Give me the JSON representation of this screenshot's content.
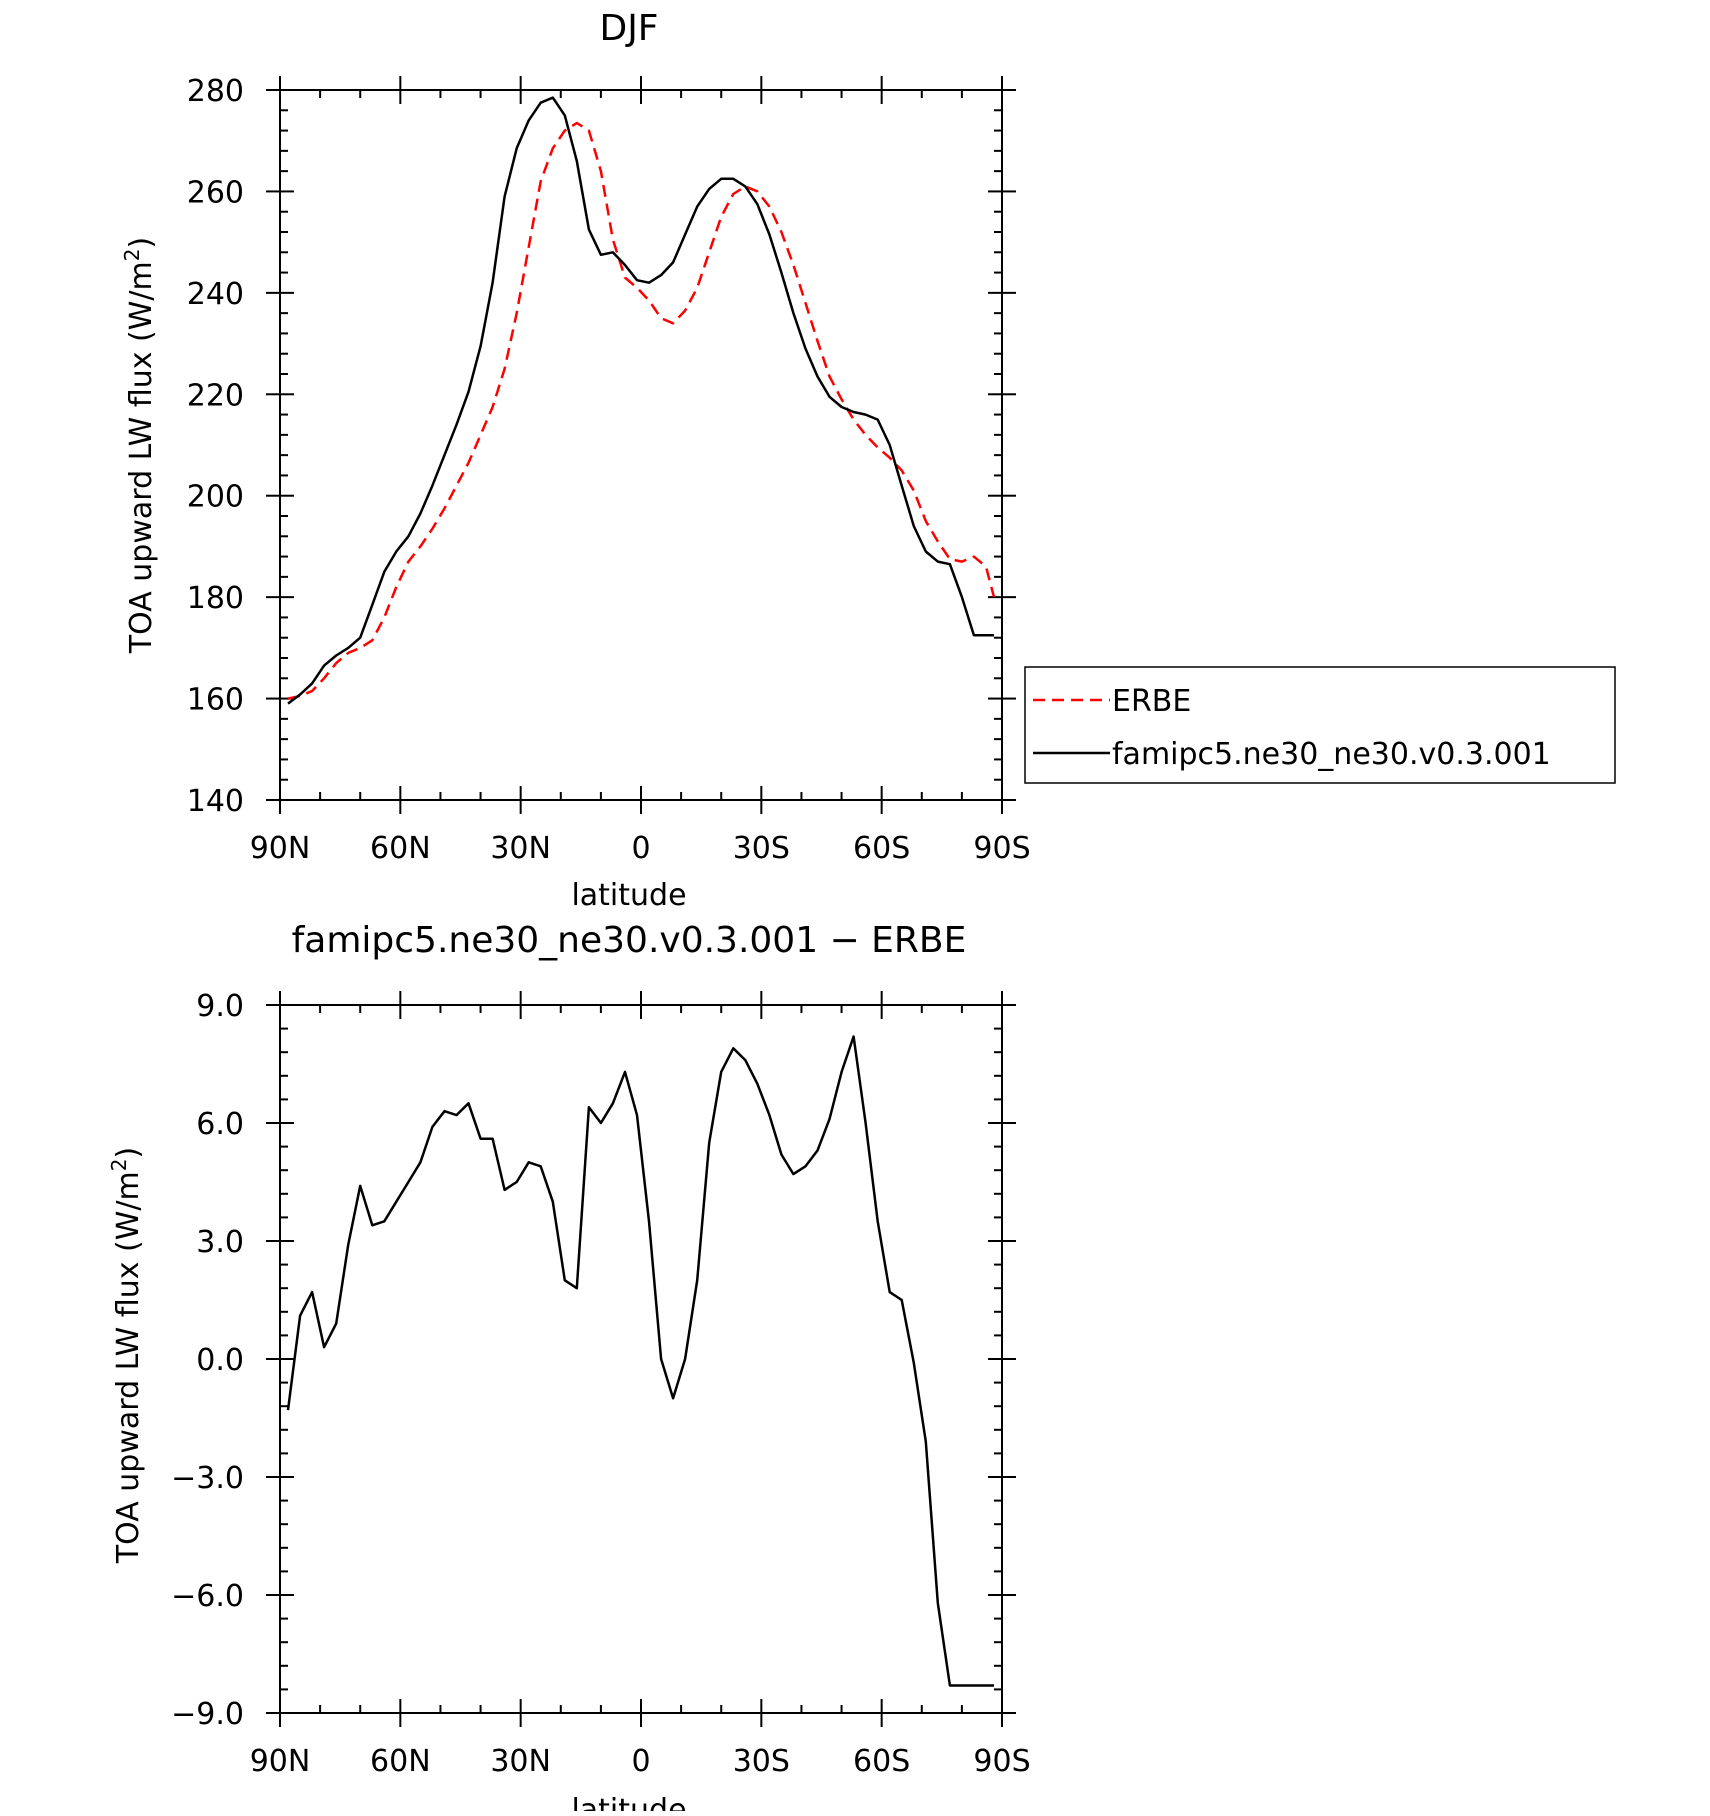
{
  "chart_data": [
    {
      "type": "line",
      "title": "DJF",
      "xlabel": "latitude",
      "ylabel": "TOA upward LW flux (W/m2)",
      "ylabel_main": "TOA upward LW flux (W/m",
      "ylabel_sup": "2",
      "ylabel_close": ")",
      "xlim": [
        90,
        -90
      ],
      "ylim": [
        140,
        280
      ],
      "x_ticks": [
        90,
        60,
        30,
        0,
        -30,
        -60,
        -90
      ],
      "x_tick_labels": [
        "90N",
        "60N",
        "30N",
        "0",
        "30S",
        "60S",
        "90S"
      ],
      "y_ticks": [
        140,
        160,
        180,
        200,
        220,
        240,
        260,
        280
      ],
      "y_tick_labels": [
        "140",
        "160",
        "180",
        "200",
        "220",
        "240",
        "260",
        "280"
      ],
      "legend": {
        "placement": "right",
        "entries": [
          {
            "label": "ERBE",
            "color": "#ff0000",
            "dash": true
          },
          {
            "label": "famipc5.ne30_ne30.v0.3.001",
            "color": "#000000",
            "dash": false
          }
        ]
      },
      "series": [
        {
          "name": "ERBE",
          "color": "#ff0000",
          "dash": true,
          "x": [
            88,
            85,
            82,
            79,
            76,
            73,
            70,
            67,
            64,
            61,
            58,
            55,
            52,
            49,
            46,
            43,
            40,
            37,
            34,
            31,
            28,
            25,
            22,
            19,
            16,
            13,
            10,
            7,
            4,
            1,
            -2,
            -5,
            -8,
            -11,
            -14,
            -17,
            -20,
            -23,
            -26,
            -29,
            -32,
            -35,
            -38,
            -41,
            -44,
            -47,
            -50,
            -53,
            -56,
            -59,
            -62,
            -65,
            -68,
            -71,
            -74,
            -77,
            -80,
            -83,
            -86,
            -88
          ],
          "y": [
            160,
            160.5,
            161.5,
            164,
            167,
            169,
            170,
            171.5,
            176,
            182,
            187,
            190,
            193.5,
            197.5,
            202,
            206.5,
            212,
            217.5,
            225,
            236,
            249,
            262,
            268.5,
            272,
            273.5,
            272,
            264,
            250.5,
            243,
            241,
            238.5,
            235,
            234,
            236.5,
            241,
            248,
            255,
            259.5,
            261,
            260,
            257,
            252,
            245.5,
            238,
            230.5,
            223.5,
            219,
            215,
            212,
            209.5,
            207.5,
            205,
            201,
            195,
            191,
            187.5,
            187,
            188,
            186,
            180
          ]
        },
        {
          "name": "famipc5.ne30_ne30.v0.3.001",
          "color": "#000000",
          "dash": false,
          "x": [
            88,
            85,
            82,
            79,
            76,
            73,
            70,
            67,
            64,
            61,
            58,
            55,
            52,
            49,
            46,
            43,
            40,
            37,
            34,
            31,
            28,
            25,
            22,
            19,
            16,
            13,
            10,
            7,
            4,
            1,
            -2,
            -5,
            -8,
            -11,
            -14,
            -17,
            -20,
            -23,
            -26,
            -29,
            -32,
            -35,
            -38,
            -41,
            -44,
            -47,
            -50,
            -53,
            -56,
            -59,
            -62,
            -65,
            -68,
            -71,
            -74,
            -77,
            -80,
            -83,
            -86,
            -88
          ],
          "y": [
            159,
            160.8,
            163,
            166.5,
            168.5,
            170,
            172,
            178.5,
            185,
            189,
            192,
            196.5,
            202,
            208,
            214,
            220.5,
            229.5,
            242,
            259,
            268.5,
            274,
            277.5,
            278.5,
            275,
            266,
            252.5,
            247.5,
            248,
            245.5,
            242.5,
            242,
            243.5,
            246,
            251.5,
            257,
            260.5,
            262.5,
            262.5,
            261,
            257.5,
            251.5,
            244,
            236,
            229,
            223.5,
            219.5,
            217.5,
            216.5,
            216,
            215,
            210,
            202,
            194,
            189,
            187,
            186.5,
            180,
            172.5,
            172.5,
            172.5
          ]
        }
      ]
    },
    {
      "type": "line",
      "title": "famipc5.ne30_ne30.v0.3.001 − ERBE",
      "xlabel": "latitude",
      "ylabel": "TOA upward LW flux (W/m2)",
      "ylabel_main": "TOA upward LW flux (W/m",
      "ylabel_sup": "2",
      "ylabel_close": ")",
      "xlim": [
        90,
        -90
      ],
      "ylim": [
        -9,
        9
      ],
      "x_ticks": [
        90,
        60,
        30,
        0,
        -30,
        -60,
        -90
      ],
      "x_tick_labels": [
        "90N",
        "60N",
        "30N",
        "0",
        "30S",
        "60S",
        "90S"
      ],
      "y_ticks": [
        -9,
        -6,
        -3,
        0,
        3,
        6,
        9
      ],
      "y_tick_labels": [
        "−9.0",
        "−6.0",
        "−3.0",
        "0.0",
        "3.0",
        "6.0",
        "9.0"
      ],
      "series": [
        {
          "color": "#000000",
          "dash": false,
          "x": [
            88,
            85,
            82,
            79,
            76,
            73,
            70,
            67,
            64,
            61,
            58,
            55,
            52,
            49,
            46,
            43,
            40,
            37,
            34,
            31,
            28,
            25,
            22,
            19,
            16,
            13,
            10,
            7,
            4,
            1,
            -2,
            -5,
            -8,
            -11,
            -14,
            -17,
            -20,
            -23,
            -26,
            -29,
            -32,
            -35,
            -38,
            -41,
            -44,
            -47,
            -50,
            -53,
            -56,
            -59,
            -62,
            -65,
            -68,
            -71,
            -74,
            -77,
            -80,
            -83,
            -86,
            -88
          ],
          "y": [
            -1.3,
            1.1,
            1.7,
            0.3,
            0.9,
            2.9,
            4.4,
            3.4,
            3.5,
            4.0,
            4.5,
            5.0,
            5.9,
            6.3,
            6.2,
            6.5,
            5.6,
            5.6,
            4.3,
            4.5,
            5.0,
            4.9,
            4.0,
            2.0,
            1.8,
            6.4,
            6.0,
            6.5,
            7.3,
            6.2,
            3.5,
            0.0,
            -1.0,
            0.0,
            2.0,
            5.5,
            7.3,
            7.9,
            7.6,
            7.0,
            6.2,
            5.2,
            4.7,
            4.9,
            5.3,
            6.1,
            7.3,
            8.2,
            6.0,
            3.5,
            1.7,
            1.5,
            -0.1,
            -2.1,
            -6.2,
            -8.3,
            -8.3,
            -8.3,
            -8.3,
            -8.3
          ]
        }
      ]
    }
  ]
}
